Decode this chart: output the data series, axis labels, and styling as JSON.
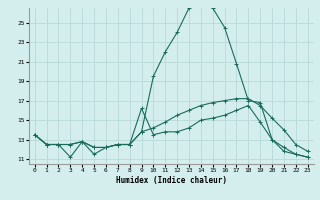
{
  "xlabel": "Humidex (Indice chaleur)",
  "ylabel": "",
  "background_color": "#d4eeee",
  "grid_color": "#b8d8d8",
  "line_color": "#1a6b5a",
  "xlim": [
    -0.5,
    23.5
  ],
  "ylim": [
    10.5,
    26.5
  ],
  "xticks": [
    0,
    1,
    2,
    3,
    4,
    5,
    6,
    7,
    8,
    9,
    10,
    11,
    12,
    13,
    14,
    15,
    16,
    17,
    18,
    19,
    20,
    21,
    22,
    23
  ],
  "yticks": [
    11,
    13,
    15,
    17,
    19,
    21,
    23,
    25
  ],
  "series": [
    {
      "x": [
        0,
        1,
        2,
        3,
        4,
        5,
        6,
        7,
        8,
        9,
        10,
        11,
        12,
        13,
        14,
        15,
        16,
        17,
        18,
        19,
        20,
        21,
        22,
        23
      ],
      "y": [
        13.5,
        12.5,
        12.5,
        12.5,
        12.8,
        12.2,
        12.2,
        12.5,
        12.5,
        16.2,
        13.5,
        13.8,
        13.8,
        14.2,
        15.0,
        15.2,
        15.5,
        16.0,
        16.5,
        14.8,
        13.0,
        11.8,
        11.5,
        11.2
      ]
    },
    {
      "x": [
        0,
        1,
        2,
        3,
        4,
        5,
        6,
        7,
        8,
        9,
        10,
        11,
        12,
        13,
        14,
        15,
        16,
        17,
        18,
        19,
        20,
        21,
        22,
        23
      ],
      "y": [
        13.5,
        12.5,
        12.5,
        12.5,
        12.8,
        12.2,
        12.2,
        12.5,
        12.5,
        13.8,
        14.2,
        14.8,
        15.5,
        16.0,
        16.5,
        16.8,
        17.0,
        17.2,
        17.2,
        16.5,
        15.2,
        14.0,
        12.5,
        11.8
      ]
    },
    {
      "x": [
        0,
        1,
        2,
        3,
        4,
        5,
        6,
        7,
        8,
        9,
        10,
        11,
        12,
        13,
        14,
        15,
        16,
        17,
        18,
        19,
        20,
        21,
        22,
        23
      ],
      "y": [
        13.5,
        12.5,
        12.5,
        11.2,
        12.8,
        11.5,
        12.2,
        12.5,
        12.5,
        13.8,
        19.5,
        22.0,
        24.0,
        26.5,
        26.8,
        26.5,
        24.5,
        20.8,
        17.0,
        16.8,
        13.0,
        12.2,
        11.5,
        11.2
      ]
    }
  ],
  "xlabel_fontsize": 5.5,
  "tick_fontsize": 4.5,
  "linewidth": 0.8,
  "markersize": 3.0
}
